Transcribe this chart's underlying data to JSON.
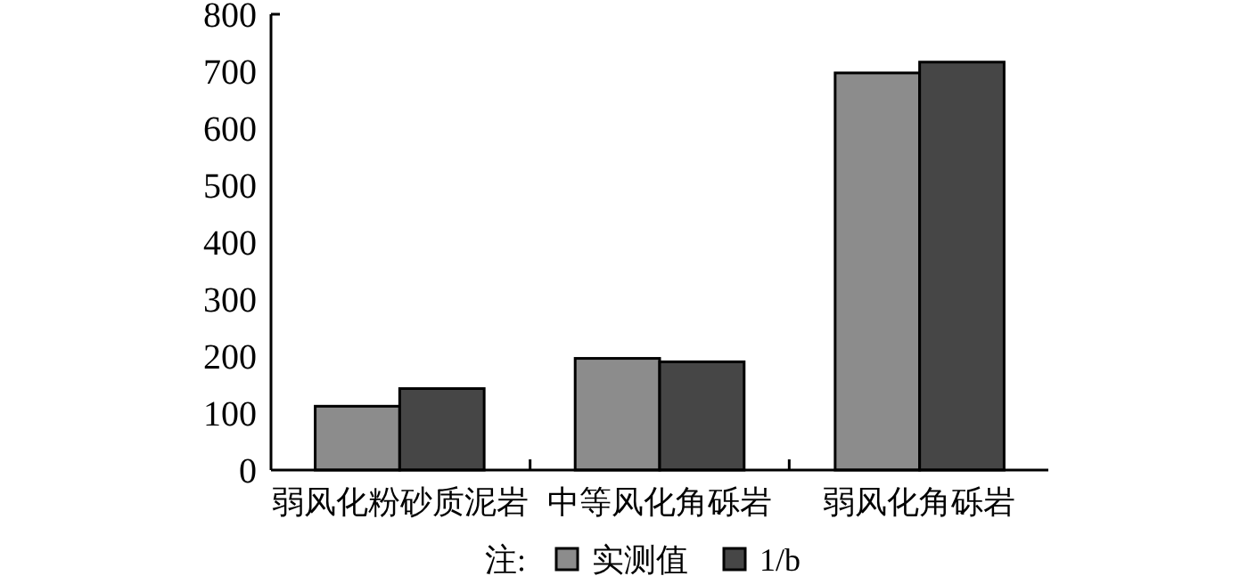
{
  "chart_data": {
    "type": "bar",
    "categories": [
      "弱风化粉砂质泥岩",
      "中等风化角砾岩",
      "弱风化角砾岩"
    ],
    "series": [
      {
        "name": "实测值",
        "color": "#8c8c8c",
        "values": [
          112,
          196,
          697
        ]
      },
      {
        "name": "1/b",
        "color": "#464646",
        "values": [
          143,
          190,
          716
        ]
      }
    ],
    "ylim": [
      0,
      800
    ],
    "yticks": [
      0,
      100,
      200,
      300,
      400,
      500,
      600,
      700,
      800
    ],
    "grid": false,
    "legend": "bottom",
    "legend_title": "注:"
  }
}
